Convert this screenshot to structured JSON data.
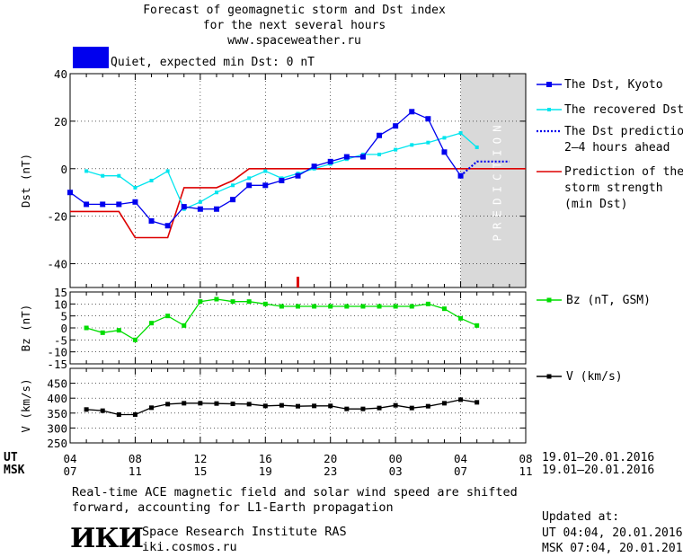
{
  "header": {
    "line1": "Forecast of geomagnetic storm and Dst index",
    "line2": "for the next several hours",
    "line3": "www.spaceweather.ru",
    "status_text": "Quiet, expected min Dst: 0 nT",
    "status_color": "#0000ee"
  },
  "legend": {
    "dst_kyoto": "The Dst, Kyoto",
    "dst_recovered": "The recovered Dst",
    "dst_prediction_1": "The Dst prediction",
    "dst_prediction_2": "2–4 hours ahead",
    "storm_strength_1": "Prediction of the",
    "storm_strength_2": "storm strength",
    "storm_strength_3": "(min Dst)",
    "bz": "Bz (nT, GSM)",
    "v": "V (km/s)"
  },
  "prediction_label": "PREDICTION",
  "time_axis": {
    "ut_label": "UT",
    "msk_label": "MSK",
    "ut_ticks": [
      "04",
      "08",
      "12",
      "16",
      "20",
      "00",
      "04",
      "08"
    ],
    "msk_ticks": [
      "07",
      "11",
      "15",
      "19",
      "23",
      "03",
      "07",
      "11"
    ],
    "ut_range": "19.01–20.01.2016",
    "msk_range": "19.01–20.01.2016"
  },
  "footer": {
    "note_1": "Real-time ACE magnetic field and solar wind speed are shifted",
    "note_2": "forward, accounting for L1-Earth propagation",
    "logo": "ИКИ",
    "institute": "Space Research Institute RAS",
    "site": "iki.cosmos.ru",
    "updated_label": "Updated at:",
    "updated_ut": "UT  04:04, 20.01.2016",
    "updated_msk": "MSK 07:04, 20.01.2016"
  },
  "chart_data": [
    {
      "type": "line",
      "title": "Forecast of geomagnetic storm and Dst index",
      "ylabel": "Dst (nT)",
      "xlabel": "UT",
      "xlim": [
        4,
        32
      ],
      "ylim": [
        -50,
        40
      ],
      "yticks": [
        "40",
        "20",
        "0",
        "-20",
        "-40"
      ],
      "prediction_region": [
        28,
        32
      ],
      "series": [
        {
          "name": "The Dst, Kyoto",
          "color": "#0000ee",
          "x": [
            4,
            5,
            6,
            7,
            8,
            9,
            10,
            11,
            12,
            13,
            14,
            15,
            16,
            17,
            18,
            19,
            20,
            21,
            22,
            23,
            24,
            25,
            26,
            27,
            28
          ],
          "y": [
            -10,
            -15,
            -15,
            -15,
            -14,
            -22,
            -24,
            -16,
            -17,
            -17,
            -13,
            -7,
            -7,
            -5,
            -3,
            1,
            3,
            5,
            5,
            14,
            18,
            24,
            21,
            7,
            -3
          ]
        },
        {
          "name": "The recovered Dst",
          "color": "#00e5ee",
          "x": [
            5,
            6,
            7,
            8,
            9,
            10,
            11,
            12,
            13,
            14,
            15,
            16,
            17,
            18,
            19,
            20,
            21,
            22,
            23,
            24,
            25,
            26,
            27,
            28,
            29
          ],
          "y": [
            -1,
            -3,
            -3,
            -8,
            -5,
            -1,
            -17,
            -14,
            -10,
            -7,
            -4,
            -1,
            -4,
            -2,
            0,
            2,
            4,
            6,
            6,
            8,
            10,
            11,
            13,
            15,
            9
          ]
        },
        {
          "name": "The Dst prediction 2–4 hours ahead",
          "color": "#0000ee",
          "x": [
            28,
            29,
            30,
            31
          ],
          "y": [
            -3,
            3,
            3,
            3
          ]
        },
        {
          "name": "Prediction of the storm strength (min Dst)",
          "color": "#dd0000",
          "x": [
            4,
            7,
            8,
            10,
            11,
            12,
            13,
            14,
            15,
            32
          ],
          "y": [
            -18,
            -18,
            -29,
            -29,
            -8,
            -8,
            -8,
            -5,
            0,
            0
          ]
        }
      ],
      "marker_x": 18
    },
    {
      "type": "line",
      "ylabel": "Bz (nT)",
      "ylim": [
        -15,
        15
      ],
      "yticks": [
        "15",
        "10",
        "5",
        "0",
        "-5",
        "-10",
        "-15"
      ],
      "series": [
        {
          "name": "Bz (nT, GSM)",
          "color": "#00dd00",
          "x": [
            5,
            6,
            7,
            8,
            9,
            10,
            11,
            12,
            13,
            14,
            15,
            16,
            17,
            18,
            19,
            20,
            21,
            22,
            23,
            24,
            25,
            26,
            27,
            28,
            29
          ],
          "y": [
            0,
            -2,
            -1,
            -5,
            2,
            5,
            1,
            11,
            12,
            11,
            11,
            10,
            9,
            9,
            9,
            9,
            9,
            9,
            9,
            9,
            9,
            10,
            8,
            4,
            1
          ]
        }
      ]
    },
    {
      "type": "line",
      "ylabel": "V (km/s)",
      "ylim": [
        250,
        500
      ],
      "yticks": [
        "450",
        "400",
        "350",
        "300",
        "250"
      ],
      "series": [
        {
          "name": "V (km/s)",
          "color": "#000000",
          "x": [
            5,
            6,
            7,
            8,
            9,
            10,
            11,
            12,
            13,
            14,
            15,
            16,
            17,
            18,
            19,
            20,
            21,
            22,
            23,
            24,
            25,
            26,
            27,
            28,
            29
          ],
          "y": [
            362,
            358,
            345,
            345,
            368,
            380,
            383,
            383,
            382,
            381,
            380,
            374,
            376,
            373,
            374,
            374,
            364,
            364,
            367,
            376,
            367,
            373,
            383,
            395,
            386
          ]
        }
      ]
    }
  ]
}
